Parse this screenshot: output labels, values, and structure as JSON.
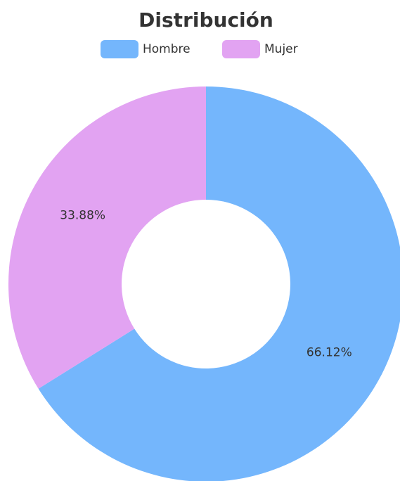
{
  "chart_data": {
    "type": "donut",
    "title": "Distribución",
    "categories": [
      "Hombre",
      "Mujer"
    ],
    "values": [
      66.12,
      33.88
    ],
    "value_labels": [
      "66.12%",
      "33.88%"
    ],
    "colors": [
      "#74b6fc",
      "#e2a3f2"
    ],
    "legend": "top"
  }
}
